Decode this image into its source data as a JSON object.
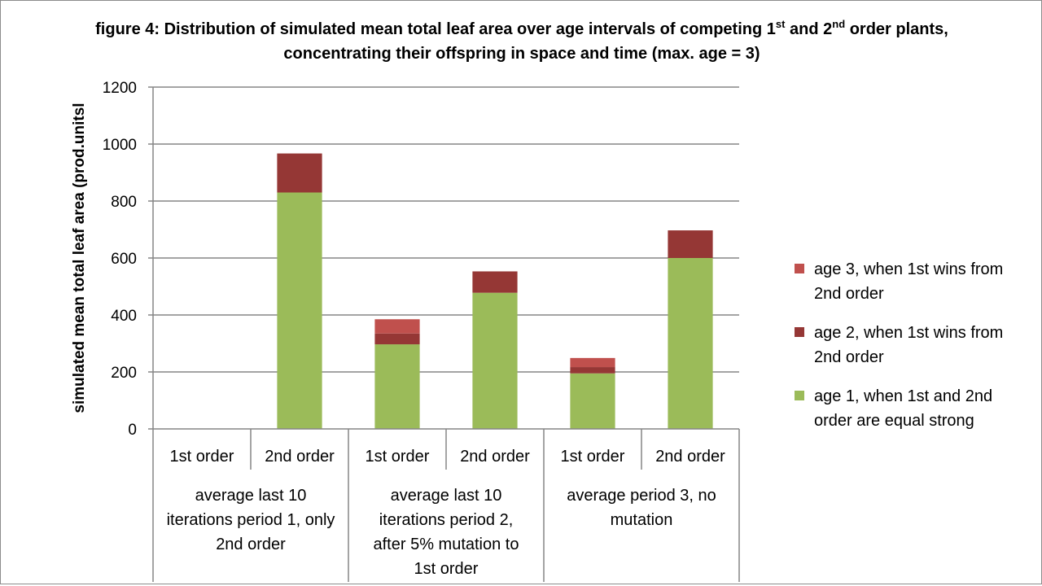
{
  "chart_data": {
    "type": "bar",
    "stacked": true,
    "title": {
      "pre": "figure 4: Distribution of simulated mean total leaf area over age intervals of competing 1",
      "sup1": "st",
      "mid": " and 2",
      "sup2": "nd",
      "post": " order plants, concentrating their offspring in space and time (max. age = 3)"
    },
    "ylabel": "simulated mean total leaf area (prod.units)",
    "ylabel_visible": "simulated mean total leaf area (prod.unitsl",
    "ylim": [
      0,
      1200
    ],
    "yticks": [
      "0",
      "200",
      "400",
      "600",
      "800",
      "1000",
      "1200"
    ],
    "grid": true,
    "legend_position": "right",
    "groups": [
      {
        "label_lines": [
          "average last 10",
          "iterations period 1, only",
          "2nd order"
        ]
      },
      {
        "label_lines": [
          "average last 10",
          "iterations period 2,",
          "after 5% mutation to",
          "1st order"
        ]
      },
      {
        "label_lines": [
          "average period 3, no",
          "mutation"
        ]
      }
    ],
    "categories": [
      "1st order",
      "2nd order",
      "1st order",
      "2nd order",
      "1st order",
      "2nd order"
    ],
    "series": [
      {
        "name": "age 1, when 1st and 2nd order are equal strong",
        "legend_lines": [
          "age 1, when 1st and 2nd",
          "order are equal strong"
        ],
        "color": "#9BBB59",
        "values": [
          0,
          830,
          297,
          478,
          195,
          600
        ]
      },
      {
        "name": "age 2, when 1st wins from 2nd order",
        "legend_lines": [
          "age 2, when 1st wins from",
          "2nd order"
        ],
        "color": "#953735",
        "values": [
          0,
          137,
          38,
          75,
          22,
          97
        ]
      },
      {
        "name": "age 3, when 1st wins from 2nd order",
        "legend_lines": [
          "age 3, when 1st wins from",
          "2nd order"
        ],
        "color": "#C0504D",
        "values": [
          0,
          0,
          50,
          0,
          32,
          0
        ]
      }
    ]
  }
}
